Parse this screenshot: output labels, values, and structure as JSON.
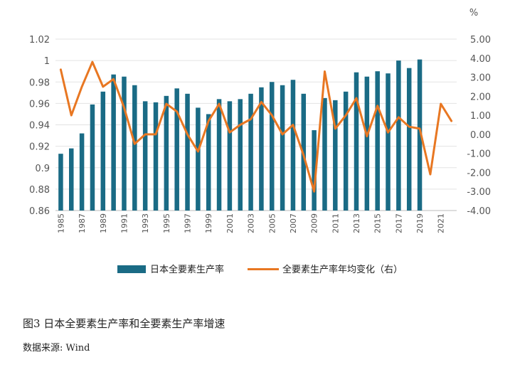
{
  "caption": "图3 日本全要素生产率和全要素生产率增速",
  "source": "数据来源: Wind",
  "chart_data": {
    "type": "bar+line",
    "unit_right": "%",
    "x": [
      1985,
      1986,
      1987,
      1988,
      1989,
      1990,
      1991,
      1992,
      1993,
      1994,
      1995,
      1996,
      1997,
      1998,
      1999,
      2000,
      2001,
      2002,
      2003,
      2004,
      2005,
      2006,
      2007,
      2008,
      2009,
      2010,
      2011,
      2012,
      2013,
      2014,
      2015,
      2016,
      2017,
      2018,
      2019,
      2020,
      2021,
      2022
    ],
    "x_tick_labels": [
      "1985",
      "1987",
      "1989",
      "1991",
      "1993",
      "1995",
      "1997",
      "1999",
      "2001",
      "2003",
      "2005",
      "2007",
      "2009",
      "2011",
      "2013",
      "2015",
      "2017",
      "2019",
      "2021"
    ],
    "y_left": {
      "ylim": [
        0.86,
        1.02
      ],
      "ticks": [
        "0.86",
        "0.88",
        "0.9",
        "0.92",
        "0.94",
        "0.96",
        "0.98",
        "1",
        "1.02"
      ]
    },
    "y_right": {
      "ylim": [
        -4,
        5
      ],
      "ticks": [
        "5.00",
        "4.00",
        "3.00",
        "2.00",
        "1.00",
        "0.00",
        "-1.00",
        "-2.00",
        "-3.00",
        "-4.00"
      ]
    },
    "series": [
      {
        "name": "日本全要素生产率",
        "type": "bar",
        "axis": "left",
        "color": "#1a6b85",
        "values": [
          0.913,
          0.918,
          0.932,
          0.959,
          0.971,
          0.987,
          0.985,
          0.977,
          0.962,
          0.961,
          0.967,
          0.974,
          0.969,
          0.956,
          0.95,
          0.964,
          0.962,
          0.964,
          0.969,
          0.975,
          0.98,
          0.977,
          0.982,
          0.969,
          0.935,
          0.965,
          0.963,
          0.971,
          0.989,
          0.985,
          0.99,
          0.988,
          1.0,
          0.993,
          1.001,
          null,
          null,
          null
        ]
      },
      {
        "name": "全要素生产率年均变化（右）",
        "type": "line",
        "axis": "right",
        "color": "#e87722",
        "values": [
          3.4,
          1.0,
          2.5,
          3.8,
          2.5,
          2.9,
          1.4,
          -0.5,
          0.0,
          0.0,
          1.6,
          1.2,
          0.0,
          -0.9,
          0.7,
          1.6,
          0.1,
          0.5,
          0.8,
          1.7,
          1.0,
          0.0,
          0.5,
          -1.1,
          -3.0,
          3.3,
          0.3,
          1.0,
          1.9,
          -0.1,
          1.5,
          0.1,
          0.9,
          0.4,
          0.3,
          -2.1,
          1.6,
          0.7
        ]
      }
    ],
    "grid": "horizontal",
    "legend_position": "bottom"
  }
}
